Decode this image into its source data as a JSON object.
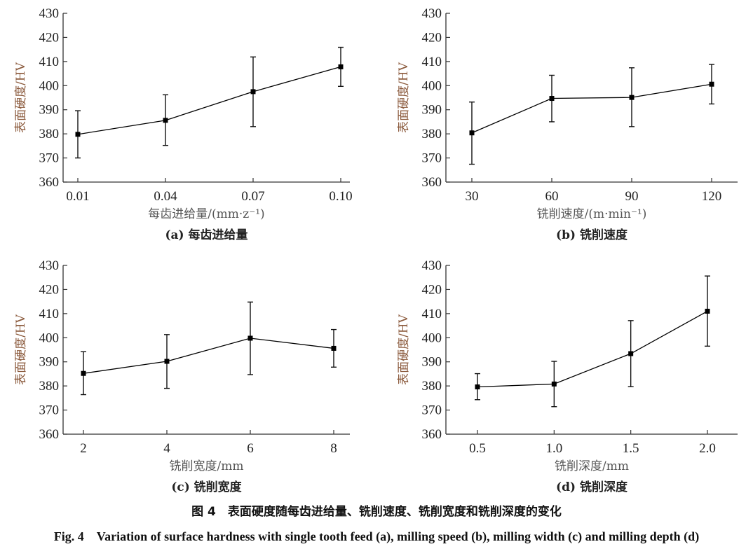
{
  "figure": {
    "caption_cn": "图 4　表面硬度随每齿进给量、铣削速度、铣削宽度和铣削深度的变化",
    "caption_en": "Fig. 4　Variation of surface hardness with single tooth feed (a), milling speed (b), milling width (c) and milling depth (d)"
  },
  "chart_data": [
    {
      "type": "line",
      "caption": "(a) 每齿进给量",
      "xlabel": "每齿进给量/(mm·z⁻¹)",
      "ylabel": "表面硬度/HV",
      "categories": [
        "0.01",
        "0.04",
        "0.07",
        "0.10"
      ],
      "values": [
        379.8,
        385.6,
        397.5,
        407.8
      ],
      "error_low": [
        370.0,
        375.2,
        383.0,
        399.7
      ],
      "error_high": [
        389.6,
        396.2,
        411.9,
        415.9
      ],
      "ylim": [
        360,
        430
      ],
      "yticks": [
        360,
        370,
        380,
        390,
        400,
        410,
        420,
        430
      ],
      "grid": false,
      "marker": "square",
      "color": "#000000"
    },
    {
      "type": "line",
      "caption": "(b) 铣削速度",
      "xlabel": "铣削速度/(m·min⁻¹)",
      "ylabel": "表面硬度/HV",
      "categories": [
        "30",
        "60",
        "90",
        "120"
      ],
      "values": [
        380.4,
        394.7,
        395.1,
        400.6
      ],
      "error_low": [
        367.4,
        385.0,
        383.0,
        392.4
      ],
      "error_high": [
        393.2,
        404.3,
        407.4,
        408.8
      ],
      "ylim": [
        360,
        430
      ],
      "yticks": [
        360,
        370,
        380,
        390,
        400,
        410,
        420,
        430
      ],
      "grid": false,
      "marker": "square",
      "color": "#000000"
    },
    {
      "type": "line",
      "caption": "(c) 铣削宽度",
      "xlabel": "铣削宽度/mm",
      "ylabel": "表面硬度/HV",
      "categories": [
        "2",
        "4",
        "6",
        "8"
      ],
      "values": [
        385.2,
        390.2,
        399.8,
        395.6
      ],
      "error_low": [
        376.4,
        379.0,
        384.7,
        387.8
      ],
      "error_high": [
        394.2,
        401.3,
        414.8,
        403.4
      ],
      "ylim": [
        360,
        430
      ],
      "yticks": [
        360,
        370,
        380,
        390,
        400,
        410,
        420,
        430
      ],
      "grid": false,
      "marker": "square",
      "color": "#000000"
    },
    {
      "type": "line",
      "caption": "(d) 铣削深度",
      "xlabel": "铣削深度/mm",
      "ylabel": "表面硬度/HV",
      "categories": [
        "0.5",
        "1.0",
        "1.5",
        "2.0"
      ],
      "values": [
        379.6,
        380.8,
        393.4,
        411.0
      ],
      "error_low": [
        374.3,
        371.4,
        379.7,
        396.5
      ],
      "error_high": [
        385.1,
        390.2,
        407.1,
        425.6
      ],
      "ylim": [
        360,
        430
      ],
      "yticks": [
        360,
        370,
        380,
        390,
        400,
        410,
        420,
        430
      ],
      "grid": false,
      "marker": "square",
      "color": "#000000"
    }
  ]
}
